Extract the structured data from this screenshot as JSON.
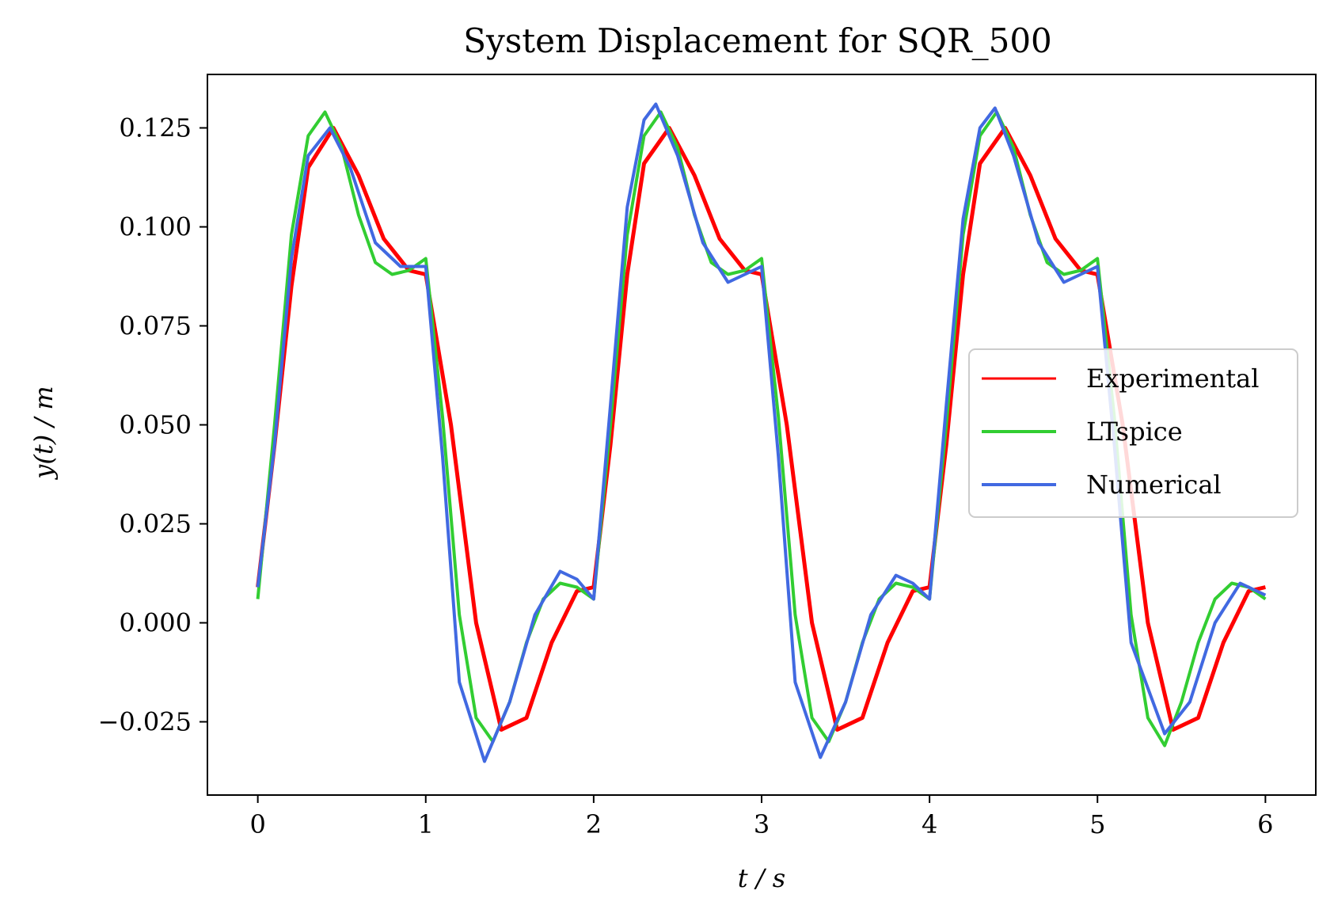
{
  "chart_data": {
    "type": "line",
    "title": "System Displacement for SQR_500",
    "xlabel": "t / s",
    "ylabel": "y(t) / m",
    "xlim": [
      -0.3,
      6.3
    ],
    "ylim": [
      -0.0435,
      0.1385
    ],
    "xticks": [
      0,
      1,
      2,
      3,
      4,
      5,
      6
    ],
    "xtick_labels": [
      "0",
      "1",
      "2",
      "3",
      "4",
      "5",
      "6"
    ],
    "yticks": [
      -0.025,
      0.0,
      0.025,
      0.05,
      0.075,
      0.1,
      0.125
    ],
    "ytick_labels": [
      "−0.025",
      "0.000",
      "0.025",
      "0.050",
      "0.075",
      "0.100",
      "0.125"
    ],
    "grid": false,
    "legend_position": "center-right",
    "series": [
      {
        "name": "Experimental",
        "color": "#ff0000",
        "x": [
          0.0,
          0.1,
          0.2,
          0.3,
          0.45,
          0.6,
          0.75,
          0.9,
          1.0,
          1.15,
          1.3,
          1.45,
          1.6,
          1.75,
          1.9,
          2.0,
          2.1,
          2.2,
          2.3,
          2.45,
          2.6,
          2.75,
          2.9,
          3.0,
          3.15,
          3.3,
          3.45,
          3.6,
          3.75,
          3.9,
          4.0,
          4.1,
          4.2,
          4.3,
          4.45,
          4.6,
          4.75,
          4.9,
          5.0,
          5.15,
          5.3,
          5.45,
          5.6,
          5.75,
          5.9,
          6.0
        ],
        "y": [
          0.009,
          0.045,
          0.085,
          0.115,
          0.125,
          0.113,
          0.097,
          0.089,
          0.088,
          0.05,
          0.0,
          -0.027,
          -0.024,
          -0.005,
          0.008,
          0.009,
          0.045,
          0.088,
          0.116,
          0.125,
          0.113,
          0.097,
          0.089,
          0.088,
          0.05,
          0.0,
          -0.027,
          -0.024,
          -0.005,
          0.008,
          0.009,
          0.045,
          0.088,
          0.116,
          0.125,
          0.113,
          0.097,
          0.089,
          0.088,
          0.05,
          0.0,
          -0.027,
          -0.024,
          -0.005,
          0.008,
          0.009
        ]
      },
      {
        "name": "LTspice",
        "color": "#32cd32",
        "x": [
          0.0,
          0.1,
          0.2,
          0.3,
          0.4,
          0.5,
          0.6,
          0.7,
          0.8,
          0.9,
          1.0,
          1.1,
          1.2,
          1.3,
          1.4,
          1.5,
          1.6,
          1.7,
          1.8,
          1.9,
          2.0,
          2.1,
          2.2,
          2.3,
          2.4,
          2.5,
          2.6,
          2.7,
          2.8,
          2.9,
          3.0,
          3.1,
          3.2,
          3.3,
          3.4,
          3.5,
          3.6,
          3.7,
          3.8,
          3.9,
          4.0,
          4.1,
          4.2,
          4.3,
          4.4,
          4.5,
          4.6,
          4.7,
          4.8,
          4.9,
          5.0,
          5.1,
          5.2,
          5.3,
          5.4,
          5.5,
          5.6,
          5.7,
          5.8,
          5.9,
          6.0
        ],
        "y": [
          0.006,
          0.05,
          0.098,
          0.123,
          0.129,
          0.12,
          0.103,
          0.091,
          0.088,
          0.089,
          0.092,
          0.052,
          0.002,
          -0.024,
          -0.03,
          -0.02,
          -0.005,
          0.006,
          0.01,
          0.009,
          0.006,
          0.05,
          0.098,
          0.123,
          0.129,
          0.12,
          0.103,
          0.091,
          0.088,
          0.089,
          0.092,
          0.052,
          0.002,
          -0.024,
          -0.03,
          -0.02,
          -0.005,
          0.006,
          0.01,
          0.009,
          0.006,
          0.05,
          0.098,
          0.123,
          0.129,
          0.12,
          0.103,
          0.091,
          0.088,
          0.089,
          0.092,
          0.052,
          0.002,
          -0.024,
          -0.031,
          -0.02,
          -0.005,
          0.006,
          0.01,
          0.009,
          0.006
        ]
      },
      {
        "name": "Numerical",
        "color": "#4169e1",
        "x": [
          0.0,
          0.1,
          0.2,
          0.3,
          0.43,
          0.55,
          0.7,
          0.85,
          1.0,
          1.1,
          1.2,
          1.35,
          1.5,
          1.65,
          1.8,
          1.9,
          2.0,
          2.1,
          2.2,
          2.3,
          2.37,
          2.5,
          2.65,
          2.8,
          3.0,
          3.1,
          3.2,
          3.35,
          3.5,
          3.65,
          3.8,
          3.9,
          4.0,
          4.1,
          4.2,
          4.3,
          4.39,
          4.5,
          4.65,
          4.8,
          5.0,
          5.1,
          5.2,
          5.4,
          5.55,
          5.7,
          5.85,
          6.0
        ],
        "y": [
          0.009,
          0.045,
          0.092,
          0.118,
          0.125,
          0.115,
          0.096,
          0.09,
          0.09,
          0.042,
          -0.015,
          -0.035,
          -0.02,
          0.002,
          0.013,
          0.011,
          0.006,
          0.055,
          0.105,
          0.127,
          0.131,
          0.118,
          0.096,
          0.086,
          0.09,
          0.042,
          -0.015,
          -0.034,
          -0.02,
          0.002,
          0.012,
          0.01,
          0.006,
          0.055,
          0.102,
          0.125,
          0.13,
          0.118,
          0.096,
          0.086,
          0.09,
          0.045,
          -0.005,
          -0.028,
          -0.02,
          0.0,
          0.01,
          0.007
        ]
      }
    ]
  }
}
